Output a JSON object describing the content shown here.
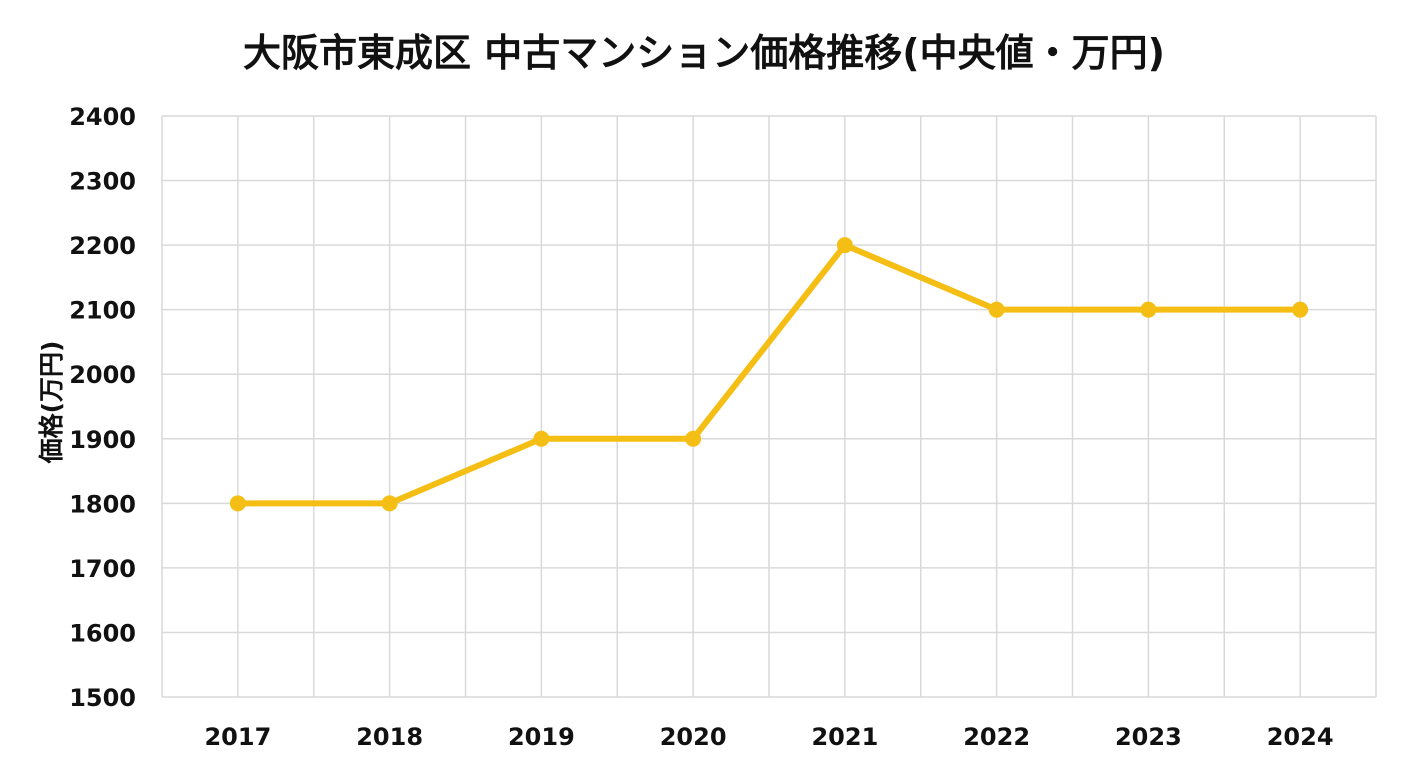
{
  "chart_data": {
    "type": "line",
    "title": "大阪市東成区 中古マンション価格推移(中央値・万円)",
    "xlabel": "",
    "ylabel": "価格(万円)",
    "categories": [
      "2017",
      "2018",
      "2019",
      "2020",
      "2021",
      "2022",
      "2023",
      "2024"
    ],
    "series": [
      {
        "values": [
          1800,
          1800,
          1900,
          1900,
          2200,
          2100,
          2100,
          2100
        ]
      }
    ],
    "ylim": [
      1500,
      2400
    ],
    "yticks": [
      "1500",
      "1600",
      "1700",
      "1800",
      "1900",
      "2000",
      "2100",
      "2200",
      "2300",
      "2400"
    ],
    "grid": true,
    "colors": {
      "line": "#F5BE14",
      "grid": "#D9D9D9"
    }
  }
}
